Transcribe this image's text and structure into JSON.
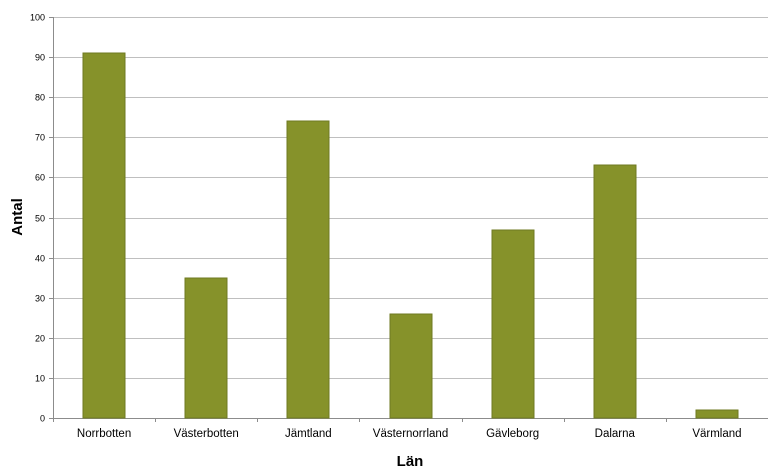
{
  "chart_data": {
    "type": "bar",
    "categories": [
      "Norrbotten",
      "Västerbotten",
      "Jämtland",
      "Västernorrland",
      "Gävleborg",
      "Dalarna",
      "Värmland"
    ],
    "values": [
      91,
      35,
      74,
      26,
      47,
      63,
      2
    ],
    "title": "",
    "xlabel": "Län",
    "ylabel": "Antal",
    "ylim": [
      0,
      100
    ],
    "yticks": [
      0,
      10,
      20,
      30,
      40,
      50,
      60,
      70,
      80,
      90,
      100
    ],
    "grid": true,
    "legend": "none",
    "bar_color": "#86922a",
    "bar_edge_color": "#6f7a22"
  }
}
